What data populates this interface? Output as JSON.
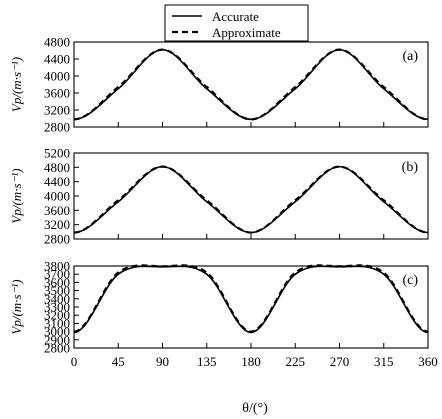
{
  "chart_data": {
    "type": "line",
    "legend": {
      "placement": "top-center",
      "entries": [
        {
          "name": "Accurate",
          "style": "solid"
        },
        {
          "name": "Approximate",
          "style": "dashed"
        }
      ]
    },
    "xlabel": "θ/(°)",
    "xlim": [
      0,
      360
    ],
    "xticks": [
      0,
      45,
      90,
      135,
      180,
      225,
      270,
      315,
      360
    ],
    "panels": [
      {
        "label": "(a)",
        "ylabel": "Vp/(m·s⁻¹)",
        "ylim": [
          2800,
          4800
        ],
        "yticks": [
          2800,
          3200,
          3600,
          4000,
          4400,
          4800
        ],
        "series": [
          {
            "name": "Accurate",
            "x": [
              0,
              45,
              90,
              135,
              180,
              225,
              270,
              315,
              360
            ],
            "y": [
              2980,
              3700,
              4620,
              3700,
              2980,
              3700,
              4620,
              3700,
              2980
            ]
          },
          {
            "name": "Approximate",
            "x": [
              0,
              45,
              90,
              135,
              180,
              225,
              270,
              315,
              360
            ],
            "y": [
              2980,
              3740,
              4620,
              3740,
              2980,
              3740,
              4620,
              3740,
              2980
            ]
          }
        ]
      },
      {
        "label": "(b)",
        "ylabel": "Vp/(m·s⁻¹)",
        "ylim": [
          2800,
          5200
        ],
        "yticks": [
          2800,
          3200,
          3600,
          4000,
          4400,
          4800,
          5200
        ],
        "series": [
          {
            "name": "Accurate",
            "x": [
              0,
              45,
              90,
              135,
              180,
              225,
              270,
              315,
              360
            ],
            "y": [
              2980,
              3840,
              4820,
              3840,
              2980,
              3840,
              4820,
              3840,
              2980
            ]
          },
          {
            "name": "Approximate",
            "x": [
              0,
              45,
              90,
              135,
              180,
              225,
              270,
              315,
              360
            ],
            "y": [
              2980,
              3880,
              4820,
              3880,
              2980,
              3880,
              4820,
              3880,
              2980
            ]
          }
        ]
      },
      {
        "label": "(c)",
        "ylabel": "Vp/(m·s⁻¹)",
        "ylim": [
          2800,
          3800
        ],
        "yticks": [
          2800,
          2900,
          3000,
          3100,
          3200,
          3300,
          3400,
          3500,
          3600,
          3700,
          3800
        ],
        "series": [
          {
            "name": "Accurate",
            "x": [
              0,
              45,
              90,
              135,
              180,
              225,
              270,
              315,
              360
            ],
            "y": [
              2990,
              3700,
              3790,
              3700,
              2990,
              3700,
              3790,
              3700,
              2990
            ]
          },
          {
            "name": "Approximate",
            "x": [
              0,
              45,
              90,
              135,
              180,
              225,
              270,
              315,
              360
            ],
            "y": [
              3000,
              3720,
              3795,
              3720,
              3000,
              3720,
              3795,
              3720,
              3000
            ]
          }
        ]
      }
    ]
  }
}
